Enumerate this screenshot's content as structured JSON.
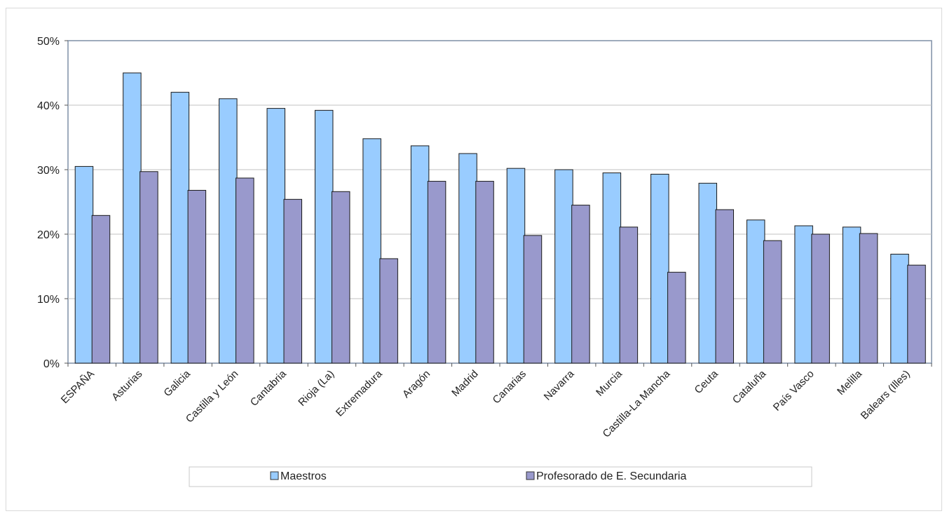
{
  "chart_data": {
    "type": "bar",
    "categories": [
      "ESPAÑA",
      "Asturias",
      "Galicia",
      "Castilla y León",
      "Cantabria",
      "Rioja (La)",
      "Extremadura",
      "Aragón",
      "Madrid",
      "Canarias",
      "Navarra",
      "Murcia",
      "Castilla-La Mancha",
      "Ceuta",
      "Cataluña",
      "País Vasco",
      "Melilla",
      "Balears (Illes)"
    ],
    "series": [
      {
        "name": "Maestros",
        "color": "#99ccff",
        "values": [
          30.5,
          45.0,
          42.0,
          41.0,
          39.5,
          39.2,
          34.8,
          33.7,
          32.5,
          30.2,
          30.0,
          29.5,
          29.3,
          27.9,
          22.2,
          21.3,
          21.1,
          16.9
        ]
      },
      {
        "name": "Profesorado de E. Secundaria",
        "color": "#9999cc",
        "values": [
          22.9,
          29.7,
          26.8,
          28.7,
          25.4,
          26.6,
          16.2,
          28.2,
          28.2,
          19.8,
          24.5,
          21.1,
          14.1,
          23.8,
          19.0,
          20.0,
          20.1,
          15.2
        ]
      }
    ],
    "ylim": [
      0,
      50
    ],
    "yticks": [
      0,
      10,
      20,
      30,
      40,
      50
    ],
    "ytick_labels": [
      "0%",
      "10%",
      "20%",
      "30%",
      "40%",
      "50%"
    ],
    "grid": true,
    "legend_position": "bottom"
  }
}
